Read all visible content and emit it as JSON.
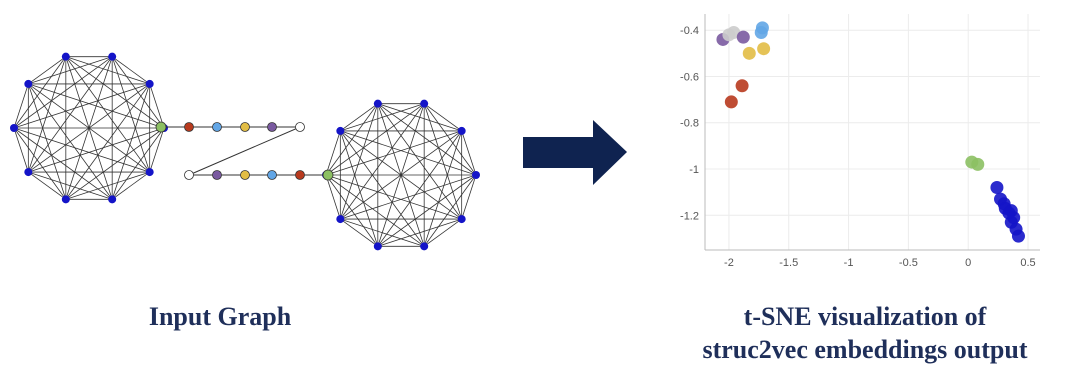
{
  "captions": {
    "left": "Input Graph",
    "right_line1": "t-SNE visualization of",
    "right_line2": "struc2vec embeddings output"
  },
  "colors": {
    "clique_node": "#1414c8",
    "edge": "#333333",
    "arrow": "#0f2350",
    "green": "#8cc063",
    "red": "#b83a1e",
    "light_blue": "#62a6e6",
    "gold": "#e2bd45",
    "purple": "#7a5aa0",
    "white_node": "#ffffff",
    "light_gray": "#cccccc"
  },
  "input_graph": {
    "cliques": [
      {
        "name": "left-clique",
        "node_count": 10,
        "node_color": "clique_node"
      },
      {
        "name": "right-clique",
        "node_count": 10,
        "node_color": "clique_node"
      }
    ],
    "path_top": [
      "green",
      "red",
      "light_blue",
      "gold",
      "purple",
      "white_node"
    ],
    "path_bottom": [
      "white_node",
      "purple",
      "gold",
      "light_blue",
      "red",
      "green"
    ]
  },
  "chart_data": {
    "type": "scatter",
    "title": "",
    "xlabel": "",
    "ylabel": "",
    "xlim": [
      -2.2,
      0.6
    ],
    "ylim": [
      -1.35,
      -0.33
    ],
    "xticks": [
      "-2",
      "-1.5",
      "-1",
      "-0.5",
      "0",
      "0.5"
    ],
    "yticks": [
      "-0.4",
      "-0.6",
      "-0.8",
      "-1",
      "-1.2"
    ],
    "grid": true,
    "points": [
      {
        "x": -2.05,
        "y": -0.44,
        "color": "purple"
      },
      {
        "x": -2.0,
        "y": -0.42,
        "color": "light_gray"
      },
      {
        "x": -1.96,
        "y": -0.41,
        "color": "light_gray"
      },
      {
        "x": -1.88,
        "y": -0.43,
        "color": "purple"
      },
      {
        "x": -1.72,
        "y": -0.39,
        "color": "light_blue"
      },
      {
        "x": -1.73,
        "y": -0.41,
        "color": "light_blue"
      },
      {
        "x": -1.83,
        "y": -0.5,
        "color": "gold"
      },
      {
        "x": -1.71,
        "y": -0.48,
        "color": "gold"
      },
      {
        "x": -1.89,
        "y": -0.64,
        "color": "red"
      },
      {
        "x": -1.98,
        "y": -0.71,
        "color": "red"
      },
      {
        "x": 0.03,
        "y": -0.97,
        "color": "green"
      },
      {
        "x": 0.08,
        "y": -0.98,
        "color": "green"
      },
      {
        "x": 0.24,
        "y": -1.08,
        "color": "clique_node"
      },
      {
        "x": 0.27,
        "y": -1.13,
        "color": "clique_node"
      },
      {
        "x": 0.3,
        "y": -1.15,
        "color": "clique_node"
      },
      {
        "x": 0.31,
        "y": -1.17,
        "color": "clique_node"
      },
      {
        "x": 0.34,
        "y": -1.19,
        "color": "clique_node"
      },
      {
        "x": 0.36,
        "y": -1.18,
        "color": "clique_node"
      },
      {
        "x": 0.36,
        "y": -1.23,
        "color": "clique_node"
      },
      {
        "x": 0.38,
        "y": -1.21,
        "color": "clique_node"
      },
      {
        "x": 0.4,
        "y": -1.26,
        "color": "clique_node"
      },
      {
        "x": 0.42,
        "y": -1.29,
        "color": "clique_node"
      }
    ]
  }
}
